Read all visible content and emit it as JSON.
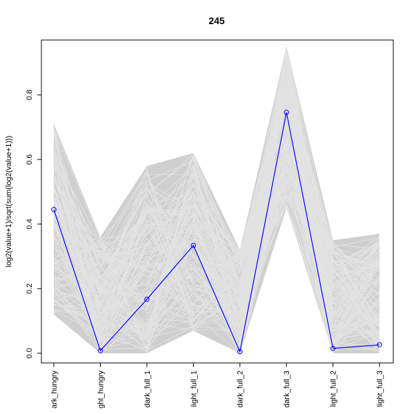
{
  "chart_data": {
    "type": "line",
    "title": "245",
    "xlabel": "",
    "ylabel": "log2(value+1)/sqrt(sum(log2(value+1)))",
    "categories": [
      "dark_hungry",
      "light_hungry",
      "dark_full_1",
      "light_full_1",
      "dark_full_2",
      "dark_full_3",
      "light_full_2",
      "light_full_3"
    ],
    "category_labels_visible": [
      "ark_hungry",
      "ght_hungry",
      "dark_full_1",
      "light_full_1",
      "dark_full_2",
      "dark_full_3",
      "light_full_2",
      "light_full_3"
    ],
    "ylim": [
      -0.03,
      0.97
    ],
    "yticks": [
      0.0,
      0.2,
      0.4,
      0.6,
      0.8
    ],
    "ytick_labels": [
      "0.0",
      "0.2",
      "0.4",
      "0.6",
      "0.8"
    ],
    "grid": false,
    "series": [
      {
        "values": [
          0.445,
          0.008,
          0.167,
          0.334,
          0.005,
          0.746,
          0.015,
          0.026
        ]
      }
    ],
    "background": {
      "description_of_profiles": "many gray profile lines of other genes",
      "ranges": [
        {
          "min": 0.12,
          "max": 0.71
        },
        {
          "min": 0.0,
          "max": 0.36
        },
        {
          "min": 0.0,
          "max": 0.58
        },
        {
          "min": 0.07,
          "max": 0.62
        },
        {
          "min": 0.0,
          "max": 0.32
        },
        {
          "min": 0.45,
          "max": 0.95
        },
        {
          "min": 0.0,
          "max": 0.35
        },
        {
          "min": 0.0,
          "max": 0.37
        }
      ]
    },
    "colors": {
      "highlight": "#0000ff",
      "background_lines": "#d3d3d3",
      "background_fill": "#cfcfcf"
    }
  }
}
